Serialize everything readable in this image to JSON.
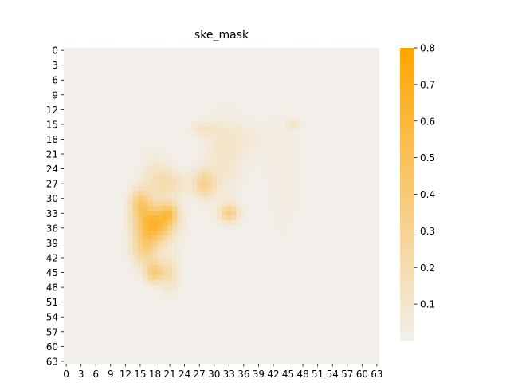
{
  "chart_data": {
    "type": "heatmap",
    "title": "ske_mask",
    "xlabel": "",
    "ylabel": "",
    "grid_size": 64,
    "x_tick_labels": [
      "0",
      "3",
      "6",
      "9",
      "12",
      "15",
      "18",
      "21",
      "24",
      "27",
      "30",
      "33",
      "36",
      "39",
      "42",
      "45",
      "48",
      "51",
      "54",
      "57",
      "60",
      "63"
    ],
    "y_tick_labels": [
      "0",
      "3",
      "6",
      "9",
      "12",
      "15",
      "18",
      "21",
      "24",
      "27",
      "30",
      "33",
      "36",
      "39",
      "42",
      "45",
      "48",
      "51",
      "54",
      "57",
      "60",
      "63"
    ],
    "colorbar": {
      "min": 0.0,
      "max": 0.8,
      "tick_values": [
        0.1,
        0.2,
        0.3,
        0.4,
        0.5,
        0.6,
        0.7,
        0.8
      ],
      "tick_labels": [
        "0.1",
        "0.2",
        "0.3",
        "0.4",
        "0.5",
        "0.6",
        "0.7",
        "0.8"
      ],
      "low_color": "#f2efeb",
      "high_color": "#ffa500"
    },
    "background_value": 0.0,
    "blobs": [
      {
        "x": 18,
        "y": 35,
        "sx": 2.6,
        "sy": 2.6,
        "value": 0.62
      },
      {
        "x": 15,
        "y": 31,
        "sx": 1.4,
        "sy": 2.2,
        "value": 0.35
      },
      {
        "x": 16,
        "y": 40,
        "sx": 1.8,
        "sy": 2.8,
        "value": 0.32
      },
      {
        "x": 18,
        "y": 45,
        "sx": 1.3,
        "sy": 1.4,
        "value": 0.38
      },
      {
        "x": 21,
        "y": 33,
        "sx": 1.2,
        "sy": 1.5,
        "value": 0.32
      },
      {
        "x": 21,
        "y": 45,
        "sx": 1.2,
        "sy": 2.8,
        "value": 0.18
      },
      {
        "x": 21,
        "y": 27,
        "sx": 2.5,
        "sy": 2.0,
        "value": 0.18
      },
      {
        "x": 28,
        "y": 27,
        "sx": 1.6,
        "sy": 2.0,
        "value": 0.3
      },
      {
        "x": 28,
        "y": 16,
        "sx": 1.8,
        "sy": 1.0,
        "value": 0.12
      },
      {
        "x": 32,
        "y": 22,
        "sx": 2.6,
        "sy": 5.5,
        "value": 0.11
      },
      {
        "x": 33,
        "y": 33,
        "sx": 1.4,
        "sy": 1.3,
        "value": 0.33
      },
      {
        "x": 36,
        "y": 18,
        "sx": 4.0,
        "sy": 2.5,
        "value": 0.06
      },
      {
        "x": 46,
        "y": 15,
        "sx": 0.9,
        "sy": 0.8,
        "value": 0.12
      },
      {
        "x": 44,
        "y": 25,
        "sx": 2.5,
        "sy": 8.0,
        "value": 0.04
      },
      {
        "x": 18,
        "y": 25,
        "sx": 2.0,
        "sy": 3.0,
        "value": 0.1
      }
    ]
  }
}
